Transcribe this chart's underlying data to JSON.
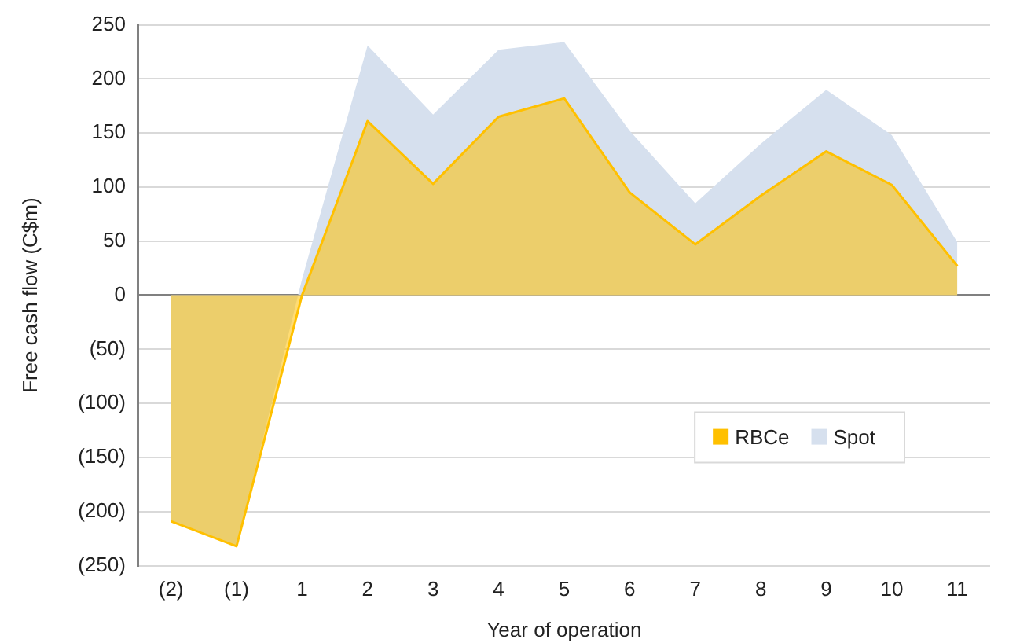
{
  "chart_data": {
    "type": "area",
    "xlabel": "Year of operation",
    "ylabel": "Free cash flow (C$m)",
    "categories": [
      "(2)",
      "(1)",
      "1",
      "2",
      "3",
      "4",
      "5",
      "6",
      "7",
      "8",
      "9",
      "10",
      "11"
    ],
    "series": [
      {
        "name": "RBCe",
        "color": "#ffc000",
        "values": [
          -209,
          -232,
          0,
          161,
          103,
          165,
          182,
          95,
          47,
          92,
          133,
          102,
          27
        ]
      },
      {
        "name": "Spot",
        "color": "#d6e0ee",
        "values": [
          -209,
          -232,
          15,
          231,
          167,
          227,
          234,
          152,
          85,
          140,
          190,
          148,
          49
        ]
      }
    ],
    "ylim": [
      -250,
      250
    ],
    "yticks": [
      {
        "value": -250,
        "label": "(250)"
      },
      {
        "value": -200,
        "label": "(200)"
      },
      {
        "value": -150,
        "label": "(150)"
      },
      {
        "value": -100,
        "label": "(100)"
      },
      {
        "value": -50,
        "label": "(50)"
      },
      0,
      50,
      100,
      150,
      200,
      250
    ],
    "grid": "y",
    "legend": "bottom right"
  }
}
